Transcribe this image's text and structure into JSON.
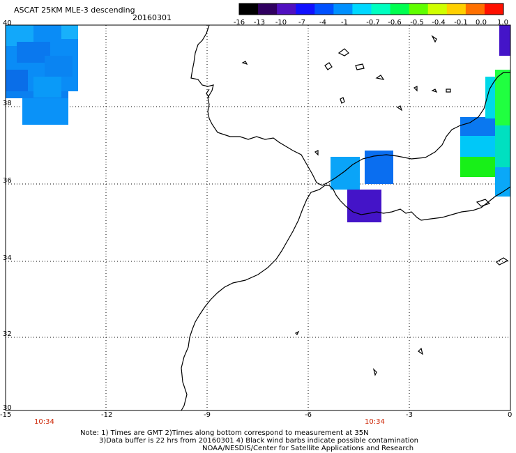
{
  "header": {
    "title": "ASCAT 25KM MLE-3 descending",
    "date": "20160301"
  },
  "colorbar": {
    "labels": [
      "-16",
      "-13",
      "-10",
      "-7",
      "-4",
      "-1",
      "-0.7",
      "-0.6",
      "-0.5",
      "-0.4",
      "-0.1",
      "0.0",
      "1.0"
    ],
    "colors": [
      "#000000",
      "#300060",
      "#5010c0",
      "#1010ff",
      "#0050ff",
      "#0090ff",
      "#00d8ff",
      "#00ffc0",
      "#00ff50",
      "#60ff00",
      "#d0ff00",
      "#ffd000",
      "#ff7000",
      "#ff1000"
    ]
  },
  "axes": {
    "lon_labels": [
      "-15",
      "-12",
      "-9",
      "-6",
      "-3",
      "0"
    ],
    "lat_labels": [
      "40",
      "38",
      "36",
      "34",
      "32",
      "30"
    ]
  },
  "times": {
    "left": "10:34",
    "right": "10:34"
  },
  "notes": {
    "line1": "Note: 1) Times are GMT 2)Times along bottom correspond to measurement at 35N",
    "line2": "3)Data buffer is 22 hrs from 20160301 4) Black wind barbs indicate possible contamination",
    "line3": "NOAA/NESDIS/Center for Satellite Applications and Research"
  },
  "map_data": {
    "extent": {
      "lon": [
        -15,
        0
      ],
      "lat": [
        30,
        40
      ]
    },
    "grid": "dotted",
    "swaths": [
      {
        "name": "northwest",
        "color": "#0a88f5"
      },
      {
        "name": "gibraltar-light",
        "color": "#0aa0f8"
      },
      {
        "name": "gibraltar-blue",
        "color": "#0a70f0"
      },
      {
        "name": "alboran-purple",
        "color": "#4010d0"
      },
      {
        "name": "east-edge",
        "color": "#20ff40"
      }
    ]
  }
}
